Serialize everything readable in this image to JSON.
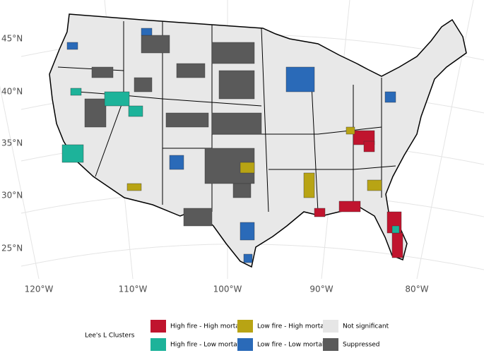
{
  "map": {
    "lat_labels": [
      "45°N",
      "40°N",
      "35°N",
      "30°N",
      "25°N"
    ],
    "lon_labels": [
      "120°W",
      "110°W",
      "100°W",
      "90°W",
      "80°W"
    ],
    "legend": {
      "title": "Lee's L Clusters",
      "items": [
        {
          "label": "High fire - High mortality",
          "color": "#c0142e"
        },
        {
          "label": "High fire - Low mortality",
          "color": "#1db39a"
        },
        {
          "label": "Low fire - High mortality",
          "color": "#b8a414"
        },
        {
          "label": "Low fire - Low mortality",
          "color": "#2a6ab8"
        },
        {
          "label": "Not significant",
          "color": "#e6e6e6"
        },
        {
          "label": "Suppressed",
          "color": "#5a5a5a"
        }
      ]
    }
  }
}
